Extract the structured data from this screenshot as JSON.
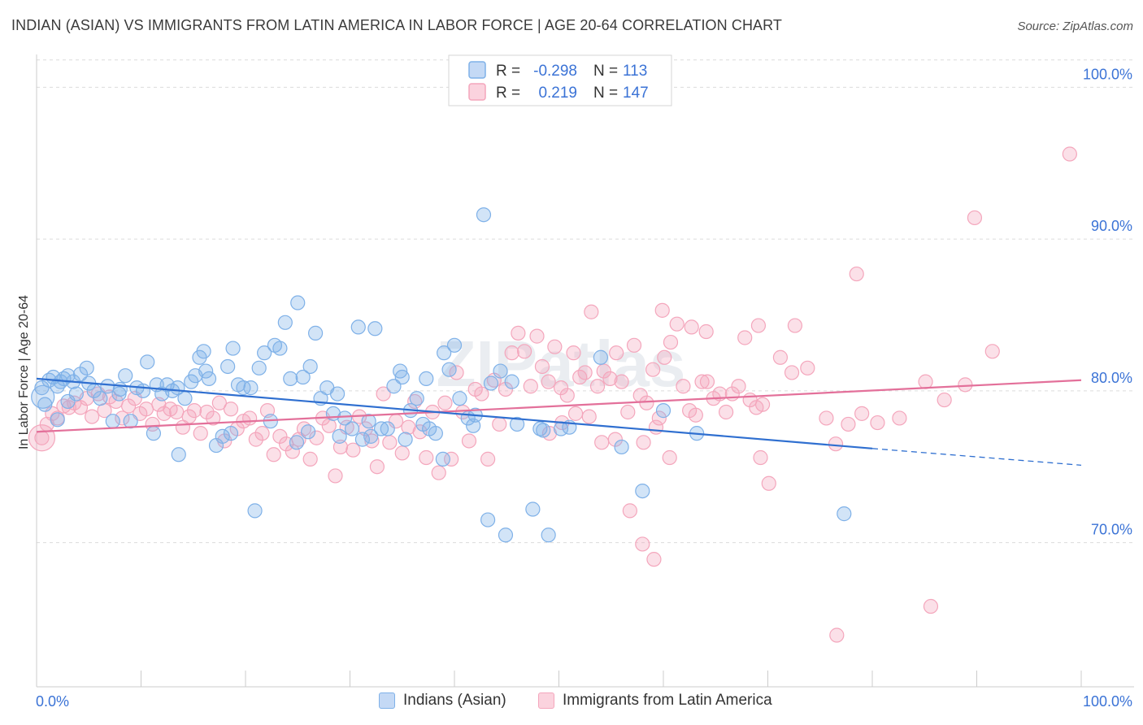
{
  "title": "INDIAN (ASIAN) VS IMMIGRANTS FROM LATIN AMERICA IN LABOR FORCE | AGE 20-64 CORRELATION CHART",
  "source": "Source: ZipAtlas.com",
  "watermark": "ZIPatlas",
  "chart_data": {
    "type": "scatter",
    "title": "INDIAN (ASIAN) VS IMMIGRANTS FROM LATIN AMERICA IN LABOR FORCE | AGE 20-64 CORRELATION CHART",
    "xlabel": "",
    "ylabel": "In Labor Force | Age 20-64",
    "xlim": [
      0,
      100
    ],
    "ylim": [
      60.5,
      102
    ],
    "x_tick_labels": [
      "0.0%",
      "100.0%"
    ],
    "y_ticks": [
      70,
      80,
      90,
      100
    ],
    "y_tick_labels": [
      "70.0%",
      "80.0%",
      "90.0%",
      "100.0%"
    ],
    "grid": true,
    "legend_position": "top-center",
    "series": [
      {
        "name": "Indians (Asian)",
        "color": "#7fb1e8",
        "line_color": "#2f6fd0",
        "r": "-0.298",
        "n": "113",
        "trend": {
          "x0": 0,
          "y0": 80.8,
          "x1": 80,
          "y1": 76.2,
          "dashed_to_x": 100,
          "dashed_to_y": 75.1
        },
        "points": [
          [
            0.5,
            80.2
          ],
          [
            0.8,
            79.1
          ],
          [
            1.2,
            80.7
          ],
          [
            1.6,
            80.9
          ],
          [
            2.0,
            80.3
          ],
          [
            2.3,
            80.6
          ],
          [
            2.6,
            80.8
          ],
          [
            3.0,
            81.0
          ],
          [
            3.5,
            80.6
          ],
          [
            3.8,
            79.8
          ],
          [
            4.2,
            81.1
          ],
          [
            4.8,
            81.5
          ],
          [
            5.5,
            80.0
          ],
          [
            6.1,
            79.5
          ],
          [
            6.8,
            80.3
          ],
          [
            7.3,
            78.0
          ],
          [
            7.9,
            79.8
          ],
          [
            8.5,
            81.0
          ],
          [
            9.0,
            78.0
          ],
          [
            9.6,
            80.2
          ],
          [
            10.2,
            80.0
          ],
          [
            10.6,
            81.9
          ],
          [
            11.2,
            77.2
          ],
          [
            12.0,
            79.8
          ],
          [
            12.5,
            80.4
          ],
          [
            13.0,
            80.0
          ],
          [
            13.6,
            75.8
          ],
          [
            14.2,
            79.5
          ],
          [
            14.8,
            80.6
          ],
          [
            15.2,
            81.0
          ],
          [
            15.6,
            82.2
          ],
          [
            16.0,
            82.6
          ],
          [
            16.5,
            80.8
          ],
          [
            17.2,
            76.4
          ],
          [
            17.8,
            77.0
          ],
          [
            18.3,
            81.6
          ],
          [
            18.8,
            82.8
          ],
          [
            19.3,
            80.4
          ],
          [
            19.8,
            80.2
          ],
          [
            20.5,
            80.2
          ],
          [
            21.3,
            81.5
          ],
          [
            21.8,
            82.5
          ],
          [
            22.4,
            78.0
          ],
          [
            22.8,
            83.0
          ],
          [
            23.3,
            82.8
          ],
          [
            23.8,
            84.5
          ],
          [
            24.3,
            80.8
          ],
          [
            25.0,
            85.8
          ],
          [
            25.5,
            80.9
          ],
          [
            26.2,
            81.6
          ],
          [
            26.7,
            83.8
          ],
          [
            27.2,
            79.5
          ],
          [
            27.8,
            80.2
          ],
          [
            28.4,
            78.5
          ],
          [
            29.0,
            77.0
          ],
          [
            29.5,
            78.2
          ],
          [
            30.2,
            77.5
          ],
          [
            30.8,
            84.2
          ],
          [
            31.2,
            76.8
          ],
          [
            31.8,
            78.0
          ],
          [
            32.4,
            84.1
          ],
          [
            33.0,
            77.5
          ],
          [
            33.6,
            77.5
          ],
          [
            34.2,
            80.3
          ],
          [
            34.8,
            81.3
          ],
          [
            35.3,
            76.8
          ],
          [
            35.8,
            78.7
          ],
          [
            36.4,
            79.5
          ],
          [
            37.0,
            77.8
          ],
          [
            37.6,
            77.5
          ],
          [
            38.2,
            77.2
          ],
          [
            38.9,
            75.5
          ],
          [
            39.5,
            81.4
          ],
          [
            40.0,
            83.0
          ],
          [
            40.5,
            79.5
          ],
          [
            41.3,
            78.2
          ],
          [
            42.0,
            78.4
          ],
          [
            42.8,
            91.6
          ],
          [
            43.2,
            71.5
          ],
          [
            44.4,
            81.3
          ],
          [
            44.9,
            70.5
          ],
          [
            47.5,
            72.2
          ],
          [
            48.2,
            77.5
          ],
          [
            50.2,
            77.5
          ],
          [
            63.2,
            77.2
          ],
          [
            77.3,
            71.9
          ],
          [
            2.0,
            78.1
          ],
          [
            3.0,
            79.3
          ],
          [
            5.0,
            80.5
          ],
          [
            8.0,
            80.1
          ],
          [
            11.5,
            80.4
          ],
          [
            13.5,
            80.2
          ],
          [
            16.2,
            81.3
          ],
          [
            18.6,
            77.2
          ],
          [
            20.9,
            72.1
          ],
          [
            24.9,
            76.6
          ],
          [
            26.0,
            77.3
          ],
          [
            28.8,
            79.8
          ],
          [
            32.0,
            77.0
          ],
          [
            35.0,
            80.9
          ],
          [
            37.3,
            80.8
          ],
          [
            39.0,
            82.5
          ],
          [
            41.8,
            77.7
          ],
          [
            43.5,
            80.5
          ],
          [
            45.5,
            80.6
          ],
          [
            46.0,
            77.8
          ],
          [
            48.5,
            77.4
          ],
          [
            49.0,
            70.5
          ],
          [
            51.0,
            77.6
          ],
          [
            54.0,
            82.2
          ],
          [
            56.0,
            76.3
          ],
          [
            58.0,
            73.4
          ],
          [
            60.0,
            78.7
          ]
        ]
      },
      {
        "name": "Immigrants from Latin America",
        "color": "#f4a6bc",
        "line_color": "#e3709a",
        "r": "0.219",
        "n": "147",
        "trend": {
          "x0": 0,
          "y0": 77.3,
          "x1": 100,
          "y1": 80.7
        },
        "points": [
          [
            0.5,
            76.9
          ],
          [
            1.0,
            77.8
          ],
          [
            1.5,
            78.5
          ],
          [
            2.0,
            78.2
          ],
          [
            2.6,
            79.0
          ],
          [
            3.1,
            78.9
          ],
          [
            3.6,
            79.2
          ],
          [
            4.2,
            78.9
          ],
          [
            4.8,
            79.5
          ],
          [
            5.3,
            78.3
          ],
          [
            5.9,
            79.8
          ],
          [
            6.5,
            78.7
          ],
          [
            7.0,
            79.6
          ],
          [
            7.6,
            79.3
          ],
          [
            8.2,
            78.2
          ],
          [
            8.8,
            79.0
          ],
          [
            9.4,
            79.5
          ],
          [
            9.9,
            78.5
          ],
          [
            10.5,
            78.8
          ],
          [
            11.1,
            77.8
          ],
          [
            11.7,
            79.1
          ],
          [
            12.2,
            78.5
          ],
          [
            12.8,
            78.8
          ],
          [
            13.4,
            78.6
          ],
          [
            14.0,
            77.6
          ],
          [
            14.6,
            78.3
          ],
          [
            15.1,
            78.7
          ],
          [
            15.7,
            77.2
          ],
          [
            16.3,
            78.6
          ],
          [
            16.9,
            78.2
          ],
          [
            17.5,
            79.2
          ],
          [
            18.0,
            76.7
          ],
          [
            18.6,
            78.8
          ],
          [
            19.2,
            77.5
          ],
          [
            19.8,
            78.0
          ],
          [
            20.4,
            78.2
          ],
          [
            21.0,
            76.8
          ],
          [
            21.6,
            77.2
          ],
          [
            22.1,
            78.7
          ],
          [
            22.7,
            75.8
          ],
          [
            23.3,
            77.0
          ],
          [
            23.9,
            76.5
          ],
          [
            24.5,
            76.0
          ],
          [
            25.1,
            76.8
          ],
          [
            25.6,
            77.5
          ],
          [
            26.2,
            75.5
          ],
          [
            26.8,
            76.9
          ],
          [
            27.4,
            78.2
          ],
          [
            28.0,
            77.7
          ],
          [
            28.6,
            74.4
          ],
          [
            29.1,
            76.3
          ],
          [
            29.7,
            77.6
          ],
          [
            30.3,
            76.1
          ],
          [
            30.9,
            78.3
          ],
          [
            31.5,
            77.5
          ],
          [
            32.1,
            76.7
          ],
          [
            32.6,
            75.0
          ],
          [
            33.2,
            79.8
          ],
          [
            33.8,
            76.6
          ],
          [
            34.4,
            78.0
          ],
          [
            35.0,
            75.9
          ],
          [
            35.6,
            77.6
          ],
          [
            36.2,
            79.3
          ],
          [
            36.7,
            77.3
          ],
          [
            37.3,
            75.6
          ],
          [
            37.9,
            78.6
          ],
          [
            38.5,
            74.6
          ],
          [
            39.1,
            79.2
          ],
          [
            39.7,
            75.5
          ],
          [
            40.2,
            81.2
          ],
          [
            40.8,
            78.6
          ],
          [
            41.4,
            76.7
          ],
          [
            42.0,
            80.1
          ],
          [
            42.6,
            79.8
          ],
          [
            43.2,
            75.5
          ],
          [
            43.8,
            80.7
          ],
          [
            44.3,
            77.8
          ],
          [
            44.9,
            80.1
          ],
          [
            45.5,
            82.5
          ],
          [
            46.1,
            83.8
          ],
          [
            46.7,
            82.6
          ],
          [
            47.3,
            80.3
          ],
          [
            47.9,
            83.6
          ],
          [
            48.4,
            81.6
          ],
          [
            49.0,
            80.6
          ],
          [
            49.6,
            82.9
          ],
          [
            50.2,
            80.2
          ],
          [
            50.8,
            79.7
          ],
          [
            51.4,
            82.5
          ],
          [
            52.0,
            80.9
          ],
          [
            52.5,
            81.2
          ],
          [
            53.1,
            85.2
          ],
          [
            53.7,
            80.3
          ],
          [
            54.3,
            81.3
          ],
          [
            54.9,
            80.8
          ],
          [
            55.5,
            82.5
          ],
          [
            56.0,
            80.6
          ],
          [
            56.6,
            78.6
          ],
          [
            57.2,
            83.0
          ],
          [
            57.8,
            79.7
          ],
          [
            58.4,
            79.2
          ],
          [
            59.0,
            81.4
          ],
          [
            59.6,
            78.2
          ],
          [
            60.1,
            82.2
          ],
          [
            60.7,
            83.2
          ],
          [
            61.3,
            84.4
          ],
          [
            61.9,
            80.3
          ],
          [
            62.5,
            78.7
          ],
          [
            63.1,
            78.4
          ],
          [
            63.7,
            80.6
          ],
          [
            64.2,
            80.6
          ],
          [
            64.8,
            79.5
          ],
          [
            65.4,
            79.8
          ],
          [
            66.0,
            78.6
          ],
          [
            66.6,
            79.8
          ],
          [
            67.2,
            80.3
          ],
          [
            67.8,
            83.5
          ],
          [
            68.3,
            79.4
          ],
          [
            68.9,
            78.9
          ],
          [
            69.5,
            79.1
          ],
          [
            70.1,
            73.9
          ],
          [
            71.2,
            82.2
          ],
          [
            72.3,
            81.2
          ],
          [
            73.8,
            81.5
          ],
          [
            75.6,
            78.2
          ],
          [
            77.7,
            77.8
          ],
          [
            79.0,
            78.5
          ],
          [
            80.5,
            77.9
          ],
          [
            82.6,
            78.2
          ],
          [
            85.1,
            80.6
          ],
          [
            86.9,
            79.4
          ],
          [
            88.9,
            80.4
          ],
          [
            91.5,
            82.6
          ],
          [
            60.6,
            75.6
          ],
          [
            59.3,
            77.6
          ],
          [
            58.1,
            76.6
          ],
          [
            56.8,
            72.1
          ],
          [
            55.4,
            76.8
          ],
          [
            54.1,
            76.6
          ],
          [
            52.9,
            78.3
          ],
          [
            51.6,
            78.5
          ],
          [
            50.3,
            77.9
          ],
          [
            49.1,
            77.2
          ],
          [
            76.6,
            63.9
          ],
          [
            85.6,
            65.8
          ],
          [
            89.8,
            91.4
          ],
          [
            78.5,
            87.7
          ],
          [
            59.9,
            85.3
          ],
          [
            62.7,
            84.2
          ],
          [
            64.1,
            83.9
          ],
          [
            58.0,
            69.9
          ],
          [
            59.1,
            68.9
          ],
          [
            69.1,
            84.3
          ],
          [
            69.3,
            75.6
          ],
          [
            72.6,
            84.3
          ],
          [
            76.5,
            76.5
          ],
          [
            98.9,
            95.6
          ]
        ]
      }
    ]
  },
  "legend": {
    "r_label": "R =",
    "n_label": "N =",
    "rows": [
      {
        "r": "-0.298",
        "n": "113"
      },
      {
        "r": "0.219",
        "n": "147"
      }
    ]
  },
  "bottom_legend": [
    "Indians (Asian)",
    "Immigrants from Latin America"
  ]
}
